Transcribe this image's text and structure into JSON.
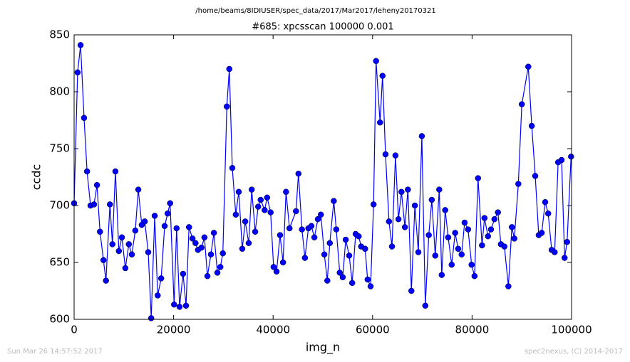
{
  "chart_data": {
    "type": "line",
    "path_title": "/home/beams/8IDIUSER/spec_data/2017/Mar2017/leheny20170321",
    "title": "#685: xpcsscan 100000 0.001",
    "xlabel": "img_n",
    "ylabel": "ccdc",
    "footer_left": "Sun Mar 26 14:57:52 2017",
    "footer_right": "spec2nexus, (C) 2014-2017",
    "xlim": [
      0,
      100000
    ],
    "xticks": [
      0,
      20000,
      40000,
      60000,
      80000,
      100000
    ],
    "ylim": [
      600,
      850
    ],
    "yticks": [
      600,
      650,
      700,
      750,
      800,
      850
    ],
    "x": [
      0,
      700,
      1300,
      2000,
      2600,
      3300,
      4000,
      4600,
      5200,
      5900,
      6400,
      7200,
      7700,
      8300,
      9000,
      9600,
      10300,
      11000,
      11600,
      12300,
      12900,
      13600,
      14200,
      14900,
      15500,
      16200,
      16800,
      17500,
      18200,
      18800,
      19300,
      20100,
      20600,
      21200,
      21900,
      22500,
      23100,
      23800,
      24400,
      24900,
      25600,
      26200,
      26800,
      27500,
      28100,
      28800,
      29400,
      29900,
      30700,
      31200,
      31800,
      32500,
      33100,
      33800,
      34400,
      35100,
      35700,
      36400,
      37000,
      37500,
      38300,
      38800,
      39500,
      40100,
      40700,
      41400,
      42000,
      42600,
      43300,
      44600,
      45100,
      45800,
      46400,
      47100,
      47700,
      48300,
      49000,
      49600,
      50300,
      50900,
      51400,
      52200,
      52700,
      53400,
      54000,
      54600,
      55300,
      55900,
      56600,
      57200,
      57700,
      58500,
      59000,
      59600,
      60200,
      60700,
      61500,
      62000,
      62600,
      63300,
      63900,
      64600,
      65200,
      65800,
      66500,
      67100,
      67800,
      68500,
      69200,
      69900,
      70600,
      71300,
      71900,
      72600,
      73400,
      73900,
      74600,
      75200,
      75900,
      76600,
      77200,
      77900,
      78500,
      79200,
      79900,
      80500,
      81200,
      82000,
      82500,
      83200,
      83800,
      84500,
      85200,
      85800,
      86500,
      87300,
      88000,
      88500,
      89300,
      90000,
      91300,
      92000,
      92700,
      93400,
      94000,
      94700,
      95300,
      96000,
      96600,
      97300,
      98000,
      98600,
      99100,
      99900
    ],
    "series": [
      {
        "name": "ccdc",
        "color": "#0000ff",
        "values": [
          702,
          817,
          841,
          777,
          730,
          700,
          701,
          718,
          677,
          652,
          634,
          701,
          666,
          730,
          660,
          672,
          645,
          666,
          657,
          678,
          714,
          683,
          686,
          659,
          601,
          691,
          621,
          636,
          682,
          693,
          702,
          613,
          680,
          611,
          640,
          612,
          681,
          671,
          667,
          661,
          663,
          672,
          638,
          657,
          676,
          641,
          646,
          658,
          787,
          820,
          733,
          692,
          712,
          662,
          686,
          667,
          714,
          677,
          699,
          705,
          696,
          707,
          694,
          646,
          642,
          674,
          650,
          712,
          680,
          695,
          728,
          679,
          654,
          680,
          682,
          672,
          688,
          692,
          657,
          634,
          667,
          704,
          679,
          641,
          637,
          670,
          656,
          632,
          675,
          673,
          664,
          662,
          635,
          629,
          701,
          827,
          773,
          814,
          745,
          686,
          664,
          744,
          688,
          712,
          681,
          714,
          625,
          700,
          659,
          761,
          612,
          674,
          705,
          656,
          714,
          639,
          696,
          672,
          648,
          676,
          662,
          657,
          685,
          679,
          648,
          638,
          724,
          665,
          689,
          673,
          679,
          688,
          694,
          666,
          664,
          629,
          681,
          671,
          719,
          789,
          822,
          770,
          726,
          674,
          676,
          703,
          693,
          661,
          659,
          738,
          740,
          654,
          668,
          743
        ]
      }
    ]
  }
}
